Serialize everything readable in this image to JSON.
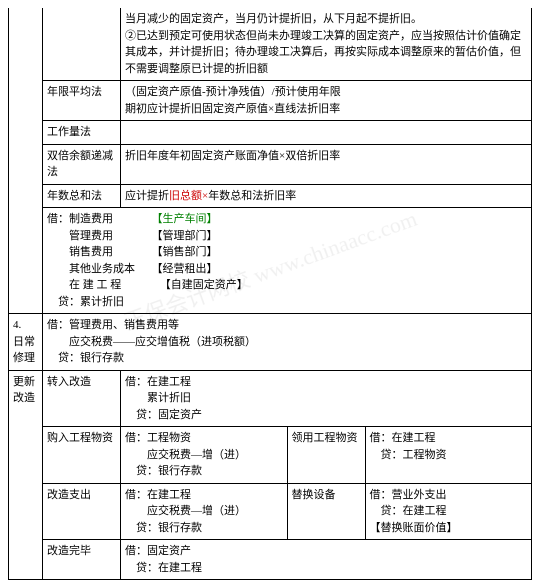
{
  "intro": {
    "line1": "当月减少的固定资产，当月仍计提折旧，从下月起不提折旧。",
    "line2": "②已达到预定可使用状态但尚未办理竣工决算的固定资产，应当按照估计价值确定其成本，并计提折旧；待办理竣工决算后，再按实际成本调整原来的暂估价值，但不需要调整原已计提的折旧额"
  },
  "methods": {
    "m1": {
      "name": "年限平均法",
      "desc1": "（固定资产原值-预计净残值）/预计使用年限",
      "desc2": "期初应计提折旧固定资产原值×直线法折旧率"
    },
    "m2": {
      "name": "工作量法",
      "desc": ""
    },
    "m3": {
      "name": "双倍余额递减法",
      "desc": "折旧年度年初固定资产账面净值×双倍折旧率"
    },
    "m4": {
      "name": "年数总和法",
      "desc": "应计提折旧总额×年数总和法折旧率"
    }
  },
  "entries1": {
    "dr": "借：",
    "l1a": "制造费用",
    "l1b": "【生产车间】",
    "l2a": "管理费用",
    "l2b": "【管理部门】",
    "l3a": "销售费用",
    "l3b": "【销售部门】",
    "l4a": "其他业务成本",
    "l4b": "【经营租出】",
    "l5a": "在 建 工 程",
    "l5b": "【自建固定资产】",
    "cr": "贷：",
    "l6": "累计折旧"
  },
  "section4": {
    "num": "4.",
    "title": "日常修理",
    "l1": "借：管理费用、销售费用等",
    "l2": "应交税费——应交增值税（进项税额）",
    "l3": "贷：银行存款"
  },
  "update": {
    "side": "更新改造",
    "r1": {
      "a": "转入改造",
      "b": "借：在建工程\n　　累计折旧\n　贷：固定资产"
    },
    "r2": {
      "a": "购入工程物资",
      "b": "借：工程物资\n　　应交税费—增（进）\n　贷：银行存款",
      "c": "领用工程物资",
      "d": "借：在建工程\n　贷：工程物资"
    },
    "r3": {
      "a": "改造支出",
      "b": "借：在建工程\n　　应交税费—增（进）\n　贷：银行存款",
      "c": "替换设备",
      "d": "借：营业外支出\n　贷：在建工程\n【替换账面价值】"
    },
    "r4": {
      "a": "改造完毕",
      "b": "借：固定资产\n　贷：在建工程"
    }
  },
  "watermark": "正保会计网校 www.chinaacc.com"
}
